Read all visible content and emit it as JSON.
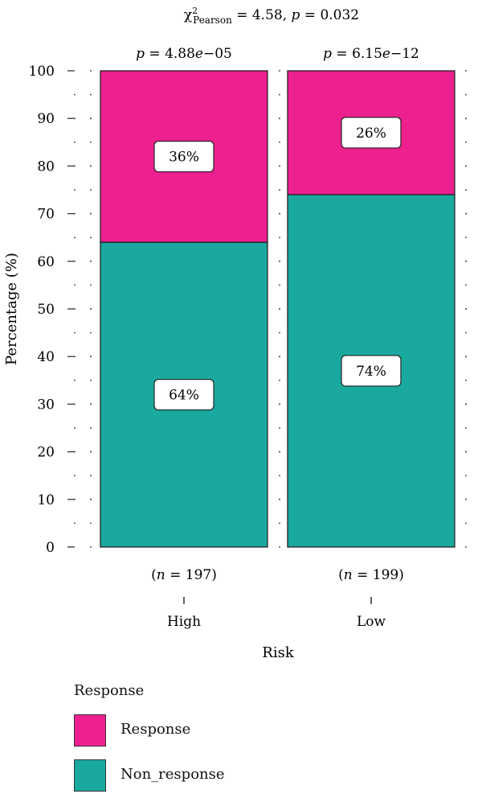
{
  "chart_data": {
    "type": "bar",
    "stacked": true,
    "title_parts": {
      "chi": "χ",
      "sup": "2",
      "sub": "Pearson",
      "rest": " = 4.58, ",
      "p_sym": "p",
      "p_rest": " = 0.032"
    },
    "xlabel": "Risk",
    "ylabel": "Percentage (%)",
    "ylim": [
      0,
      100
    ],
    "yticks": [
      "0",
      "10",
      "20",
      "30",
      "40",
      "50",
      "60",
      "70",
      "80",
      "90",
      "100"
    ],
    "categories": [
      "High",
      "Low"
    ],
    "category_pvalues": [
      {
        "sym": "p",
        "eq": " = 4.88",
        "e": "e",
        "rest": "−05"
      },
      {
        "sym": "p",
        "eq": " = 6.15",
        "e": "e",
        "rest": "−12"
      }
    ],
    "category_counts": [
      {
        "open": "(",
        "n": "n",
        "rest": " = 197)"
      },
      {
        "open": "(",
        "n": "n",
        "rest": " = 199)"
      }
    ],
    "series": [
      {
        "name": "Non_response",
        "color": "#1aa99f",
        "values": [
          64,
          74
        ],
        "labels": [
          "64%",
          "74%"
        ]
      },
      {
        "name": "Response",
        "color": "#ee2090",
        "values": [
          36,
          26
        ],
        "labels": [
          "36%",
          "26%"
        ]
      }
    ]
  },
  "legend": {
    "title": "Response",
    "items": [
      {
        "label": "Response",
        "color": "#ee2090"
      },
      {
        "label": "Non_response",
        "color": "#1aa99f"
      }
    ]
  }
}
